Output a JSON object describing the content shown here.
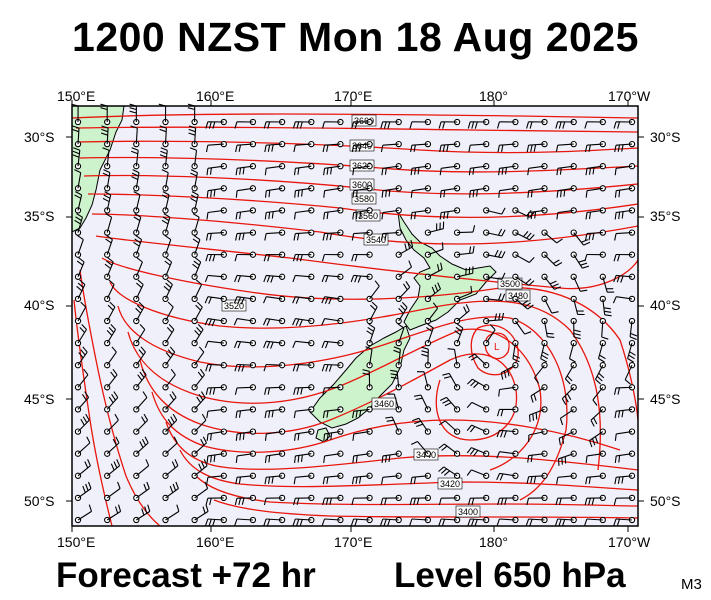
{
  "title": "1200 NZST Mon 18 Aug 2025",
  "footer": {
    "forecast": "Forecast +72 hr",
    "level": "Level 650 hPa",
    "model": "M3"
  },
  "axes": {
    "lon_labels_top": [
      "150°E",
      "160°E",
      "170°E",
      "180°",
      "170°W"
    ],
    "lon_labels_bottom": [
      "150°E",
      "160°E",
      "170°E",
      "180°",
      "170°W"
    ],
    "lat_labels_left": [
      "30°S",
      "35°S",
      "40°S",
      "45°S",
      "50°S"
    ],
    "lat_labels_right": [
      "30°S",
      "35°S",
      "40°S",
      "45°S",
      "50°S"
    ]
  },
  "contour_labels": [
    "3660",
    "3640",
    "3620",
    "3600",
    "3580",
    "3560",
    "3540",
    "3520",
    "3500",
    "3480",
    "3460",
    "3440",
    "3420",
    "3400"
  ],
  "colors": {
    "sea": "#f0f0fb",
    "land": "#cdf3cd",
    "contour": "#e8160c",
    "barb": "#000000"
  },
  "low_center_label": "L"
}
